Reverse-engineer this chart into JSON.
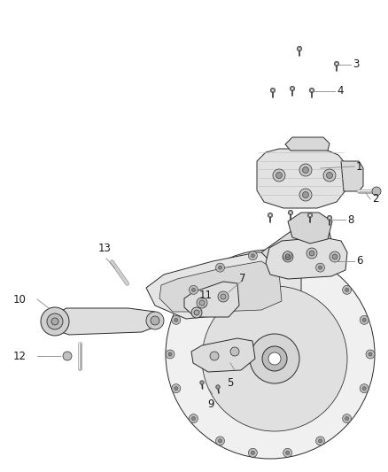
{
  "background_color": "#ffffff",
  "line_color": "#2a2a2a",
  "gray_fill": "#e8e8e8",
  "gray_dark": "#cccccc",
  "label_color": "#1a1a1a",
  "leader_color": "#888888",
  "figsize": [
    4.38,
    5.33
  ],
  "dpi": 100,
  "parts": {
    "bolt_color": "#222222",
    "bolt_head_color": "#999999"
  }
}
